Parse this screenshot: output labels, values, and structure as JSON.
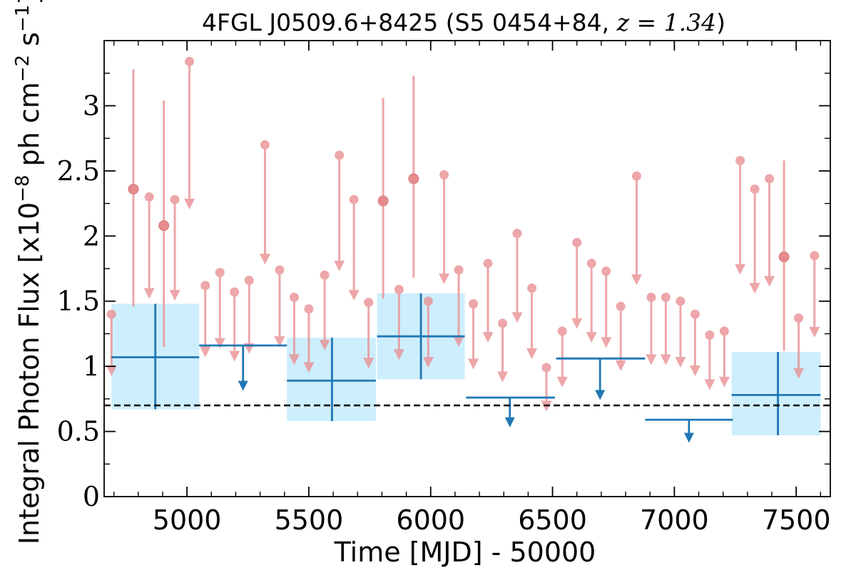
{
  "chart_data": {
    "type": "scatter",
    "title_main": "4FGL J0509.6+8425 (S5 0454+84, ",
    "title_math": "z = 1.34",
    "title_close": ")",
    "xlabel": "Time [MJD] - 50000",
    "ylabel_prefix": "Integral Photon Flux [x10",
    "ylabel_exp1": "−8",
    "ylabel_mid": " ph cm",
    "ylabel_exp2": "−2",
    "ylabel_mid2": " s",
    "ylabel_exp3": "−1",
    "ylabel_suffix": "]",
    "xlim": [
      4660,
      7640
    ],
    "ylim": [
      0,
      3.5
    ],
    "xticks": [
      5000,
      5500,
      6000,
      6500,
      7000,
      7500
    ],
    "xtick_labels": [
      "5000",
      "5500",
      "6000",
      "6500",
      "7000",
      "7500"
    ],
    "yticks": [
      0,
      0.5,
      1,
      1.5,
      2,
      2.5,
      3
    ],
    "ytick_labels": [
      "0",
      "0.5",
      "1",
      "1.5",
      "2",
      "2.5",
      "3"
    ],
    "reference_line": 0.7,
    "colors": {
      "short_bin": "#e88e91",
      "long_bin": "#1f77b4",
      "long_band": "#cdeefd",
      "reference": "#000000"
    },
    "short_bin_upper_limits": [
      {
        "x": 4690,
        "y": 1.4
      },
      {
        "x": 4845,
        "y": 2.3
      },
      {
        "x": 4950,
        "y": 2.28
      },
      {
        "x": 5010,
        "y": 3.34
      },
      {
        "x": 5075,
        "y": 1.62
      },
      {
        "x": 5135,
        "y": 1.72
      },
      {
        "x": 5195,
        "y": 1.57
      },
      {
        "x": 5255,
        "y": 1.66
      },
      {
        "x": 5320,
        "y": 2.7
      },
      {
        "x": 5380,
        "y": 1.74
      },
      {
        "x": 5440,
        "y": 1.53
      },
      {
        "x": 5500,
        "y": 1.44
      },
      {
        "x": 5565,
        "y": 1.7
      },
      {
        "x": 5625,
        "y": 2.62
      },
      {
        "x": 5685,
        "y": 2.28
      },
      {
        "x": 5745,
        "y": 1.49
      },
      {
        "x": 5870,
        "y": 1.59
      },
      {
        "x": 5990,
        "y": 1.5
      },
      {
        "x": 6055,
        "y": 2.47
      },
      {
        "x": 6115,
        "y": 1.74
      },
      {
        "x": 6175,
        "y": 1.48
      },
      {
        "x": 6235,
        "y": 1.79
      },
      {
        "x": 6295,
        "y": 1.33
      },
      {
        "x": 6355,
        "y": 2.02
      },
      {
        "x": 6415,
        "y": 1.6
      },
      {
        "x": 6475,
        "y": 0.99
      },
      {
        "x": 6540,
        "y": 1.27
      },
      {
        "x": 6600,
        "y": 1.95
      },
      {
        "x": 6660,
        "y": 1.79
      },
      {
        "x": 6720,
        "y": 1.73
      },
      {
        "x": 6780,
        "y": 1.46
      },
      {
        "x": 6845,
        "y": 2.46
      },
      {
        "x": 6905,
        "y": 1.53
      },
      {
        "x": 6965,
        "y": 1.53
      },
      {
        "x": 7025,
        "y": 1.5
      },
      {
        "x": 7085,
        "y": 1.4
      },
      {
        "x": 7145,
        "y": 1.24
      },
      {
        "x": 7205,
        "y": 1.27
      },
      {
        "x": 7270,
        "y": 2.58
      },
      {
        "x": 7330,
        "y": 2.36
      },
      {
        "x": 7390,
        "y": 2.44
      },
      {
        "x": 7510,
        "y": 1.37
      },
      {
        "x": 7575,
        "y": 1.85
      }
    ],
    "short_bin_detections": [
      {
        "x": 4780,
        "y": 2.36,
        "ylo": 1.46,
        "yhi": 3.28
      },
      {
        "x": 4905,
        "y": 2.08,
        "ylo": 1.15,
        "yhi": 3.04
      },
      {
        "x": 5805,
        "y": 2.27,
        "ylo": 1.52,
        "yhi": 3.06
      },
      {
        "x": 5930,
        "y": 2.44,
        "ylo": 1.68,
        "yhi": 3.23
      },
      {
        "x": 7450,
        "y": 1.84,
        "ylo": 1.12,
        "yhi": 2.58
      }
    ],
    "long_bin_detections": [
      {
        "x": 4870,
        "xlo": 4690,
        "xhi": 5050,
        "y": 1.07,
        "ylo": 0.67,
        "yhi": 1.48
      },
      {
        "x": 5595,
        "xlo": 5410,
        "xhi": 5775,
        "y": 0.89,
        "ylo": 0.58,
        "yhi": 1.22
      },
      {
        "x": 5960,
        "xlo": 5780,
        "xhi": 6140,
        "y": 1.23,
        "ylo": 0.9,
        "yhi": 1.56
      },
      {
        "x": 7425,
        "xlo": 7235,
        "xhi": 7600,
        "y": 0.78,
        "ylo": 0.47,
        "yhi": 1.11
      }
    ],
    "long_bin_upper_limits": [
      {
        "x": 5230,
        "xlo": 5050,
        "xhi": 5410,
        "y": 1.16
      },
      {
        "x": 6325,
        "xlo": 6145,
        "xhi": 6510,
        "y": 0.76
      },
      {
        "x": 6695,
        "xlo": 6515,
        "xhi": 6880,
        "y": 1.06
      },
      {
        "x": 7060,
        "xlo": 6880,
        "xhi": 7240,
        "y": 0.59
      }
    ]
  }
}
